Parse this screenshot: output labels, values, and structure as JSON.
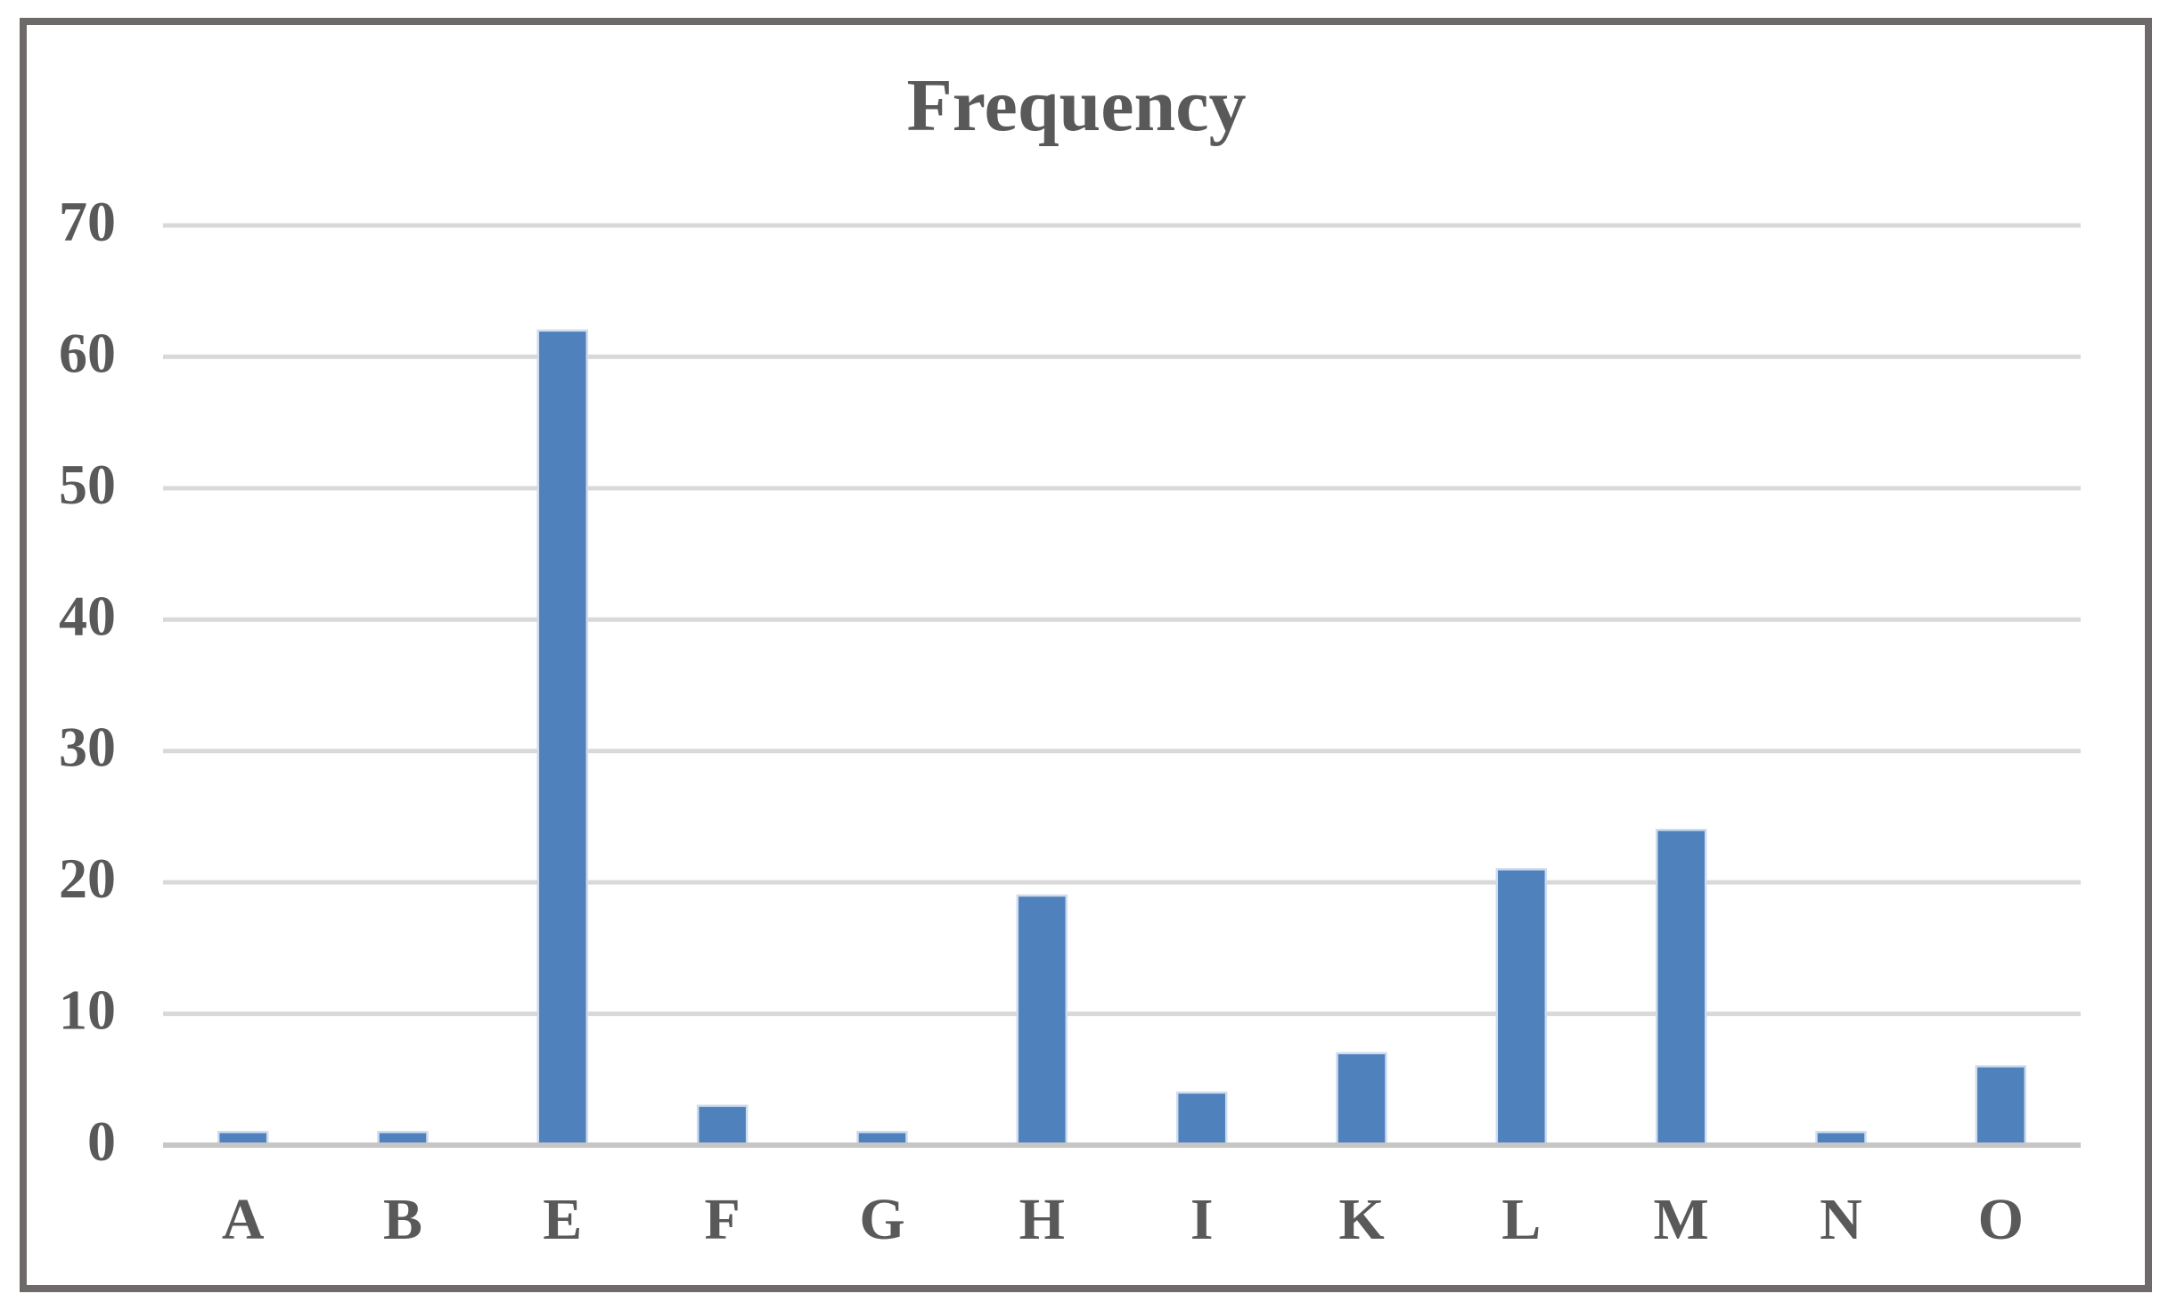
{
  "figure": {
    "title": "Frequency"
  },
  "chart_data": {
    "type": "bar",
    "title": "Frequency",
    "categories": [
      "A",
      "B",
      "E",
      "F",
      "G",
      "H",
      "I",
      "K",
      "L",
      "M",
      "N",
      "O"
    ],
    "values": [
      1,
      1,
      62,
      3,
      1,
      19,
      4,
      7,
      21,
      24,
      1,
      6
    ],
    "series": [
      {
        "name": "Frequency",
        "values": [
          1,
          1,
          62,
          3,
          1,
          19,
          4,
          7,
          21,
          24,
          1,
          6
        ]
      }
    ],
    "xlabel": "",
    "ylabel": "",
    "ylim": [
      0,
      70
    ],
    "yticks": [
      0,
      10,
      20,
      30,
      40,
      50,
      60,
      70
    ],
    "grid": "horizontal",
    "legend": "none",
    "colors": {
      "bar_fill": "#4F81BD",
      "bar_edge": "#CFDCEE",
      "gridline": "#D9D9D9",
      "axis_line": "#C6C6C6",
      "text": "#595959",
      "frame_border": "#6E6A6A",
      "background": "#FFFFFF"
    }
  }
}
